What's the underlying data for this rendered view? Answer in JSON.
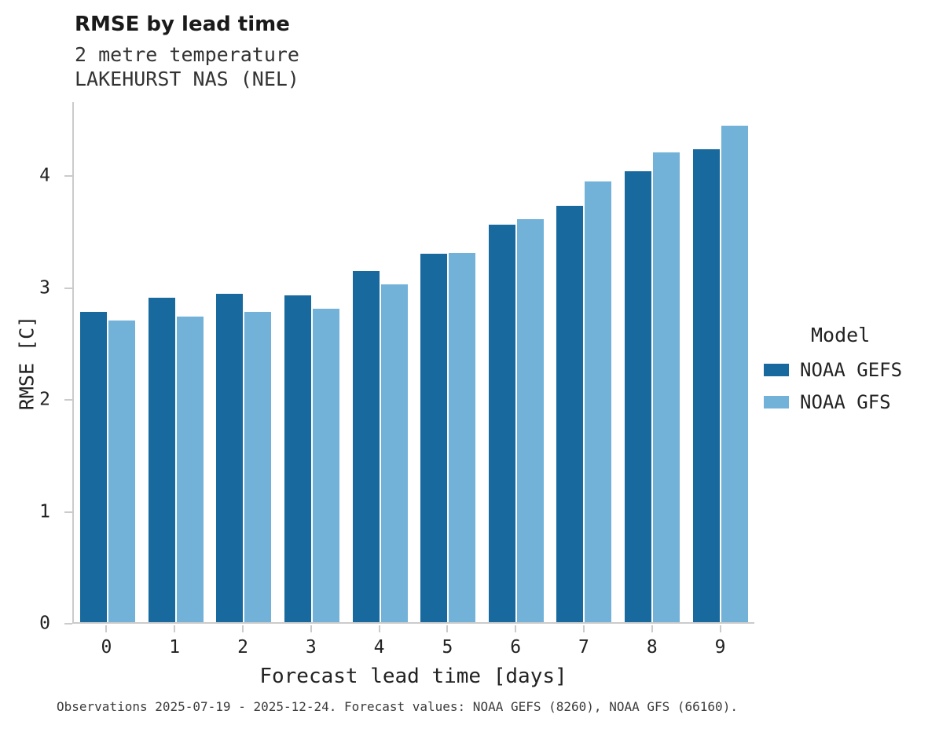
{
  "header": {
    "title": "RMSE by lead time",
    "subtitle": "2 metre temperature",
    "station": "LAKEHURST NAS (NEL)"
  },
  "chart_data": {
    "type": "bar",
    "title": "RMSE by lead time",
    "subtitle": "2 metre temperature",
    "station": "LAKEHURST NAS (NEL)",
    "categories": [
      "0",
      "1",
      "2",
      "3",
      "4",
      "5",
      "6",
      "7",
      "8",
      "9"
    ],
    "series": [
      {
        "name": "NOAA GEFS",
        "color": "#17699e",
        "values": [
          2.78,
          2.91,
          2.94,
          2.93,
          3.15,
          3.3,
          3.56,
          3.73,
          4.04,
          4.24
        ]
      },
      {
        "name": "NOAA GFS",
        "color": "#72b1d8",
        "values": [
          2.7,
          2.74,
          2.78,
          2.81,
          3.03,
          3.31,
          3.61,
          3.95,
          4.21,
          4.45
        ]
      }
    ],
    "xlabel": "Forecast lead time [days]",
    "ylabel": "RMSE [C]",
    "ylim": [
      0,
      4.66
    ],
    "yticks": [
      0,
      1,
      2,
      3,
      4
    ],
    "legend_title": "Model",
    "legend_position": "right",
    "grid": false,
    "axis_color": "#cbcbcb"
  },
  "footer": {
    "caption": "Observations 2025-07-19 - 2025-12-24. Forecast values: NOAA GEFS (8260), NOAA GFS (66160)."
  }
}
